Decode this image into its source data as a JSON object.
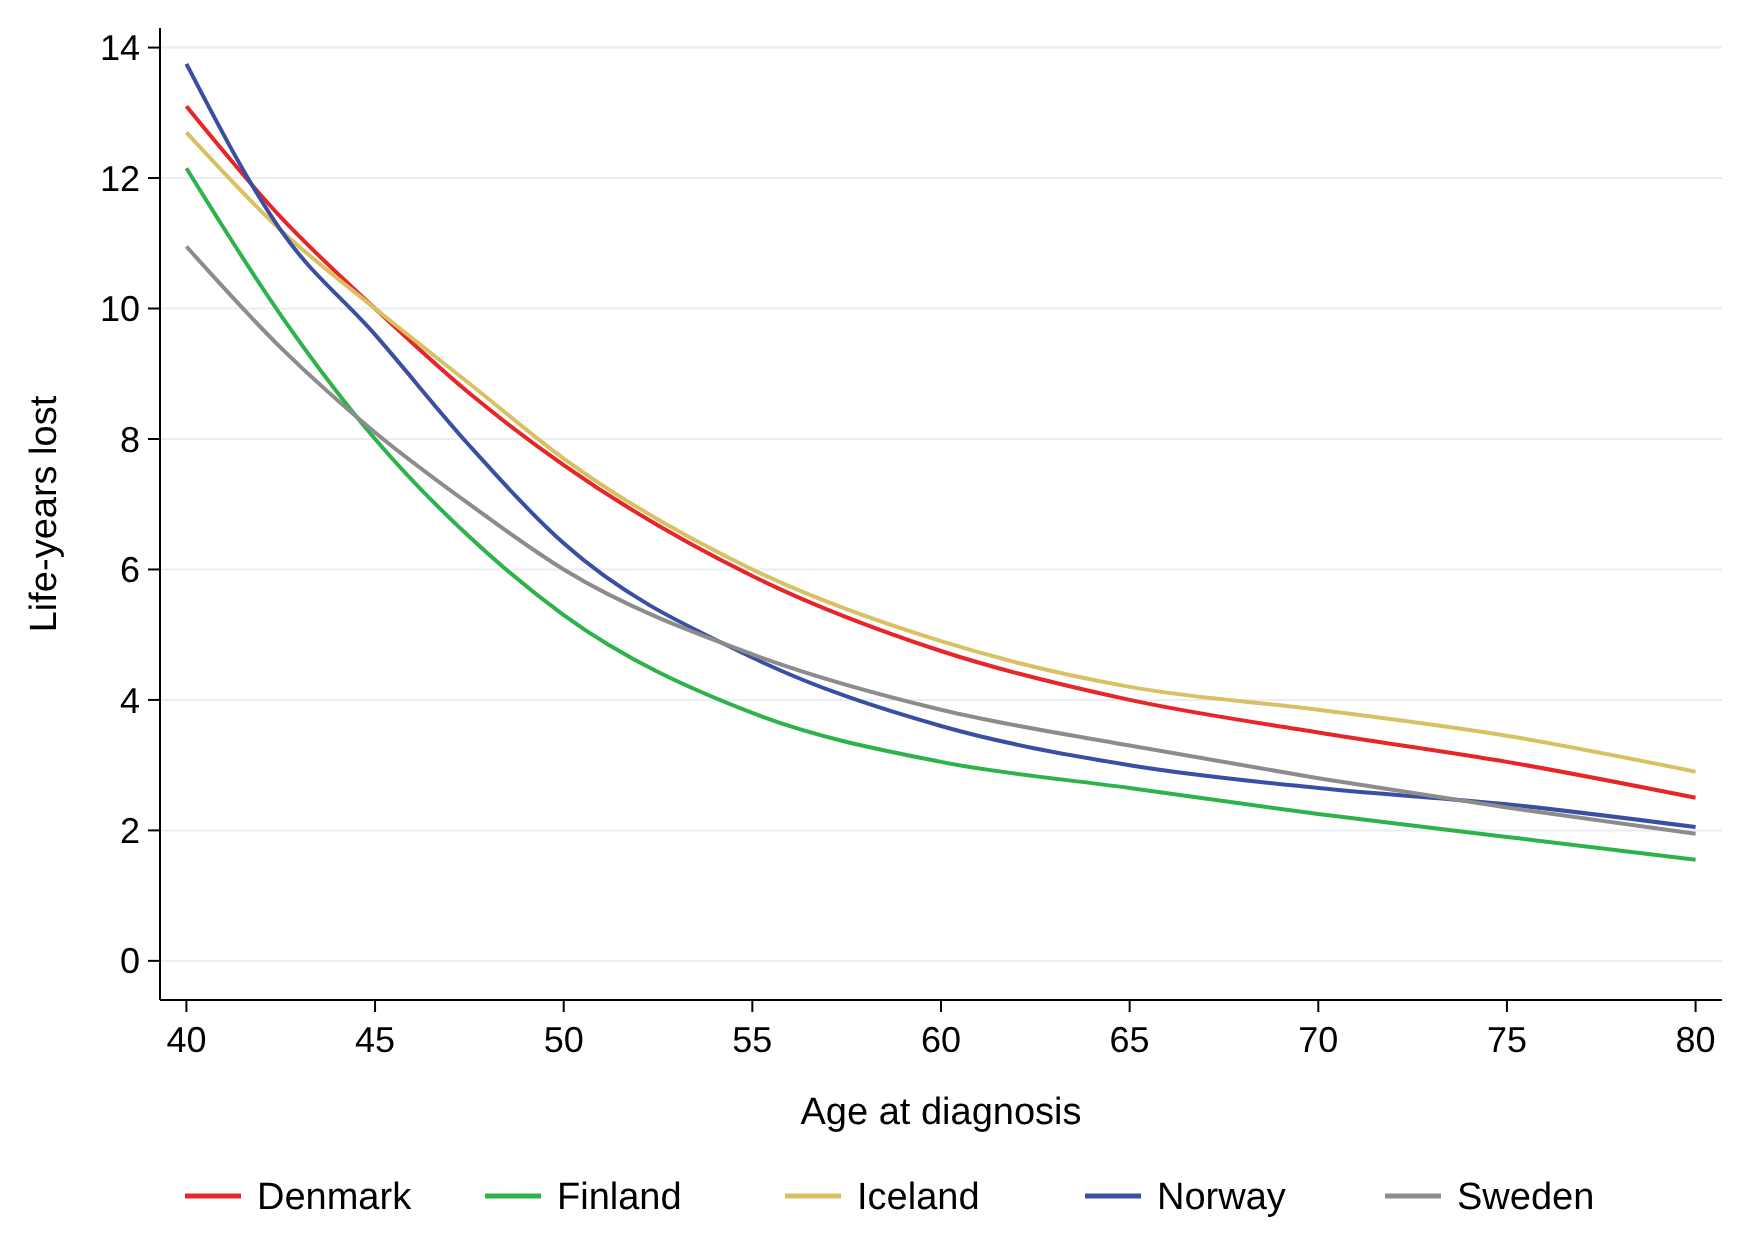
{
  "chart_data": {
    "type": "line",
    "xlabel": "Age at diagnosis",
    "ylabel": "Life-years lost",
    "x": [
      40,
      42.5,
      45,
      47.5,
      50,
      55,
      60,
      65,
      70,
      75,
      80
    ],
    "xlim": [
      39.3,
      80.7
    ],
    "xticks": [
      40,
      45,
      50,
      55,
      60,
      65,
      70,
      75,
      80
    ],
    "ylim": [
      -0.6,
      14.3
    ],
    "yticks": [
      0,
      2,
      4,
      6,
      8,
      10,
      12,
      14
    ],
    "grid": "y",
    "legend": "bottom",
    "line_style": "solid",
    "series": [
      {
        "name": "Denmark",
        "color": "#e8262a",
        "values": [
          13.1,
          11.4,
          10.0,
          8.7,
          7.6,
          5.9,
          4.75,
          4.0,
          3.5,
          3.05,
          2.5
        ]
      },
      {
        "name": "Finland",
        "color": "#2db34a",
        "values": [
          12.15,
          9.9,
          8.0,
          6.5,
          5.3,
          3.8,
          3.05,
          2.65,
          2.25,
          1.9,
          1.55
        ]
      },
      {
        "name": "Iceland",
        "color": "#d9c063",
        "values": [
          12.7,
          11.2,
          10.0,
          8.85,
          7.7,
          6.0,
          4.9,
          4.2,
          3.85,
          3.45,
          2.9
        ]
      },
      {
        "name": "Norway",
        "color": "#3a4fa3",
        "values": [
          13.75,
          11.2,
          9.6,
          7.9,
          6.4,
          4.65,
          3.6,
          3.0,
          2.65,
          2.4,
          2.05
        ]
      },
      {
        "name": "Sweden",
        "color": "#8c8c8c",
        "values": [
          10.95,
          9.4,
          8.1,
          7.0,
          6.0,
          4.7,
          3.85,
          3.3,
          2.8,
          2.35,
          1.95
        ]
      }
    ]
  }
}
